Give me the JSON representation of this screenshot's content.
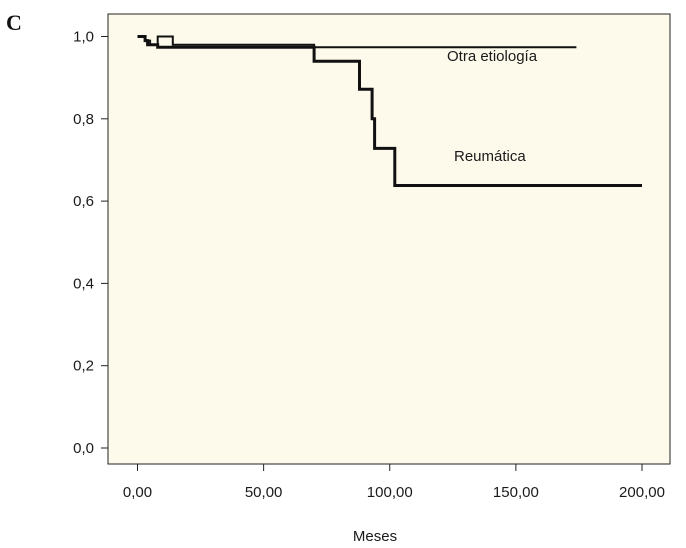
{
  "chart_data": {
    "type": "line",
    "panel_label": "C",
    "xlabel": "Meses",
    "ylabel": "",
    "xlim": [
      -8,
      210
    ],
    "ylim": [
      -0.04,
      1.04
    ],
    "x_ticks": [
      0,
      50,
      100,
      150,
      200
    ],
    "x_tick_labels": [
      "0,00",
      "50,00",
      "100,00",
      "150,00",
      "200,00"
    ],
    "y_ticks": [
      0.0,
      0.2,
      0.4,
      0.6,
      0.8,
      1.0
    ],
    "y_tick_labels": [
      "0,0",
      "0,2",
      "0,4",
      "0,6",
      "0,8",
      "1,0"
    ],
    "grid": false,
    "background_color": "#fdfaeb",
    "line_color": "#111111",
    "series": [
      {
        "name": "Otra etiología",
        "step_points": [
          [
            0,
            1.0
          ],
          [
            3,
            1.0
          ],
          [
            3,
            0.99
          ],
          [
            5,
            0.99
          ],
          [
            5,
            0.98
          ],
          [
            8,
            0.98
          ],
          [
            8,
            1.0
          ],
          [
            14,
            1.0
          ],
          [
            14,
            0.98
          ],
          [
            70,
            0.98
          ],
          [
            70,
            0.974
          ],
          [
            174,
            0.974
          ]
        ]
      },
      {
        "name": "Reumática",
        "step_points": [
          [
            0,
            1.0
          ],
          [
            3,
            1.0
          ],
          [
            3,
            0.99
          ],
          [
            4,
            0.99
          ],
          [
            4,
            0.98
          ],
          [
            8,
            0.98
          ],
          [
            8,
            0.974
          ],
          [
            70,
            0.974
          ],
          [
            70,
            0.94
          ],
          [
            88,
            0.94
          ],
          [
            88,
            0.872
          ],
          [
            93,
            0.872
          ],
          [
            93,
            0.8
          ],
          [
            94,
            0.8
          ],
          [
            94,
            0.728
          ],
          [
            102,
            0.728
          ],
          [
            102,
            0.638
          ],
          [
            200,
            0.638
          ]
        ]
      }
    ]
  }
}
